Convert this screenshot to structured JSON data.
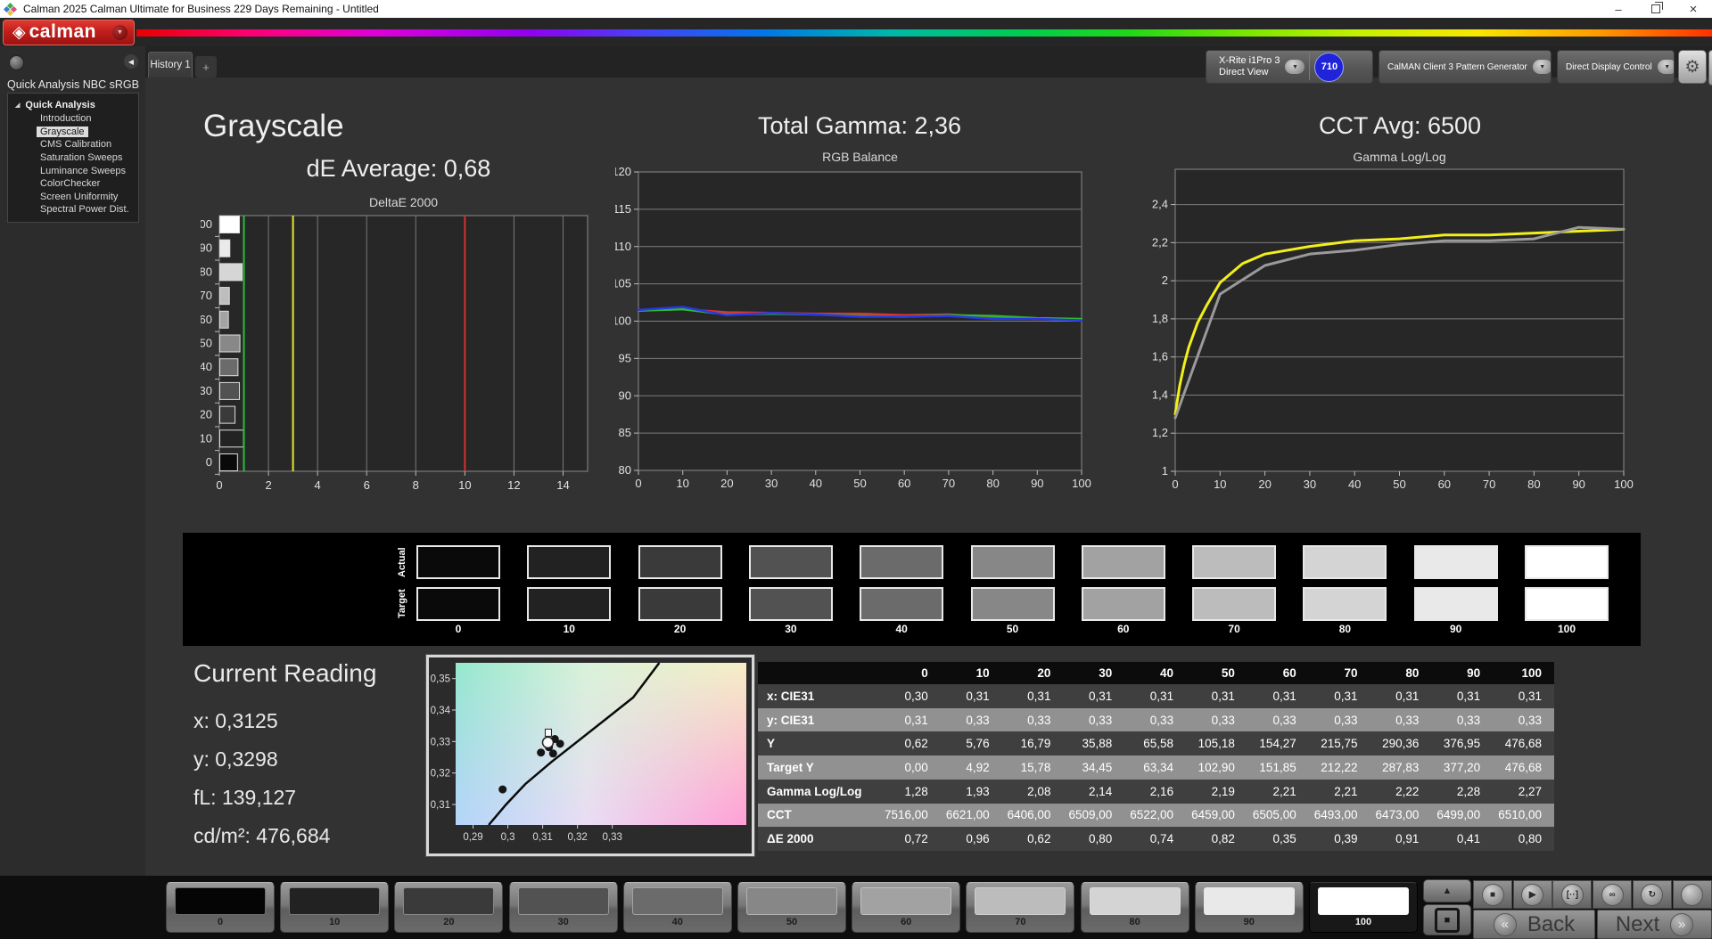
{
  "window": {
    "title": "Calman 2025 Calman Ultimate for Business 229 Days Remaining  - Untitled",
    "minimize_glyph": "–",
    "close_glyph": "×"
  },
  "brand": {
    "logo_icon": "◈",
    "logo_text": "calman",
    "dropdown_icon": "▼"
  },
  "toolbar": {
    "tab_label": "History 1",
    "add_tab_label": "+",
    "collapse_icon": "◀",
    "gear_icon": "⚙"
  },
  "meters": {
    "meter": {
      "line1": "X-Rite i1Pro 3",
      "line2": "Direct View",
      "accent": "#38d53a",
      "badge": "710",
      "badge_bg": "#1f24d8",
      "arrow": "▼"
    },
    "pattern_generator": {
      "line1": "CalMAN Client 3 Pattern Generator",
      "accent": "#38d53a",
      "arrow": "▼"
    },
    "display_control": {
      "line1": "Direct Display Control",
      "accent": "#e3d31f",
      "arrow": "▼"
    }
  },
  "sidebar": {
    "header": "Quick Analysis NBC sRGB",
    "root": "Quick Analysis",
    "expander": "◢",
    "items": [
      "Introduction",
      "Grayscale",
      "CMS Calibration",
      "Saturation Sweeps",
      "Luminance Sweeps",
      "ColorChecker",
      "Screen Uniformity",
      "Spectral Power Dist."
    ],
    "selected": "Grayscale"
  },
  "panels": {
    "grayscale_title": "Grayscale",
    "de_average": "dE Average: 0,68",
    "total_gamma": "Total Gamma: 2,36",
    "cct_avg": "CCT Avg: 6500"
  },
  "current_reading": {
    "title": "Current Reading",
    "x": "x: 0,3125",
    "y": "y: 0,3298",
    "fl": "fL: 139,127",
    "cdm2": "cd/m²: 476,684"
  },
  "chart_data": [
    {
      "id": "deltae",
      "type": "bar",
      "orientation": "horizontal",
      "title": "DeltaE 2000",
      "categories": [
        "0",
        "10",
        "20",
        "30",
        "40",
        "50",
        "60",
        "70",
        "80",
        "90",
        "100"
      ],
      "values": [
        0.72,
        0.96,
        0.62,
        0.8,
        0.74,
        0.82,
        0.35,
        0.39,
        0.91,
        0.41,
        0.8
      ],
      "bar_colors": [
        "#0a0a0a",
        "#232323",
        "#3a3a3a",
        "#525252",
        "#6b6b6b",
        "#888888",
        "#a3a3a3",
        "#bdbdbd",
        "#d6d6d6",
        "#eaeaea",
        "#ffffff"
      ],
      "xlim": [
        0,
        15
      ],
      "x_ticks": [
        0,
        2,
        4,
        6,
        8,
        10,
        12,
        14
      ],
      "reference_lines": [
        {
          "value": 1,
          "color": "#2dbb3a"
        },
        {
          "value": 3,
          "color": "#e6e332"
        },
        {
          "value": 10,
          "color": "#d03232"
        }
      ],
      "grid": true,
      "legend": "none"
    },
    {
      "id": "rgb_balance",
      "type": "line",
      "title": "RGB Balance",
      "x": [
        0,
        10,
        20,
        30,
        40,
        50,
        60,
        70,
        80,
        90,
        100
      ],
      "x_ticks": [
        0,
        10,
        20,
        30,
        40,
        50,
        60,
        70,
        80,
        90,
        100
      ],
      "ylim": [
        80,
        120
      ],
      "y_ticks": [
        {
          "v": 80,
          "label": "80"
        },
        {
          "v": 85,
          "label": "85"
        },
        {
          "v": 90,
          "label": "90"
        },
        {
          "v": 95,
          "label": "95"
        },
        {
          "v": 100,
          "label": "100"
        },
        {
          "v": 105,
          "label": "105"
        },
        {
          "v": 110,
          "label": "110"
        },
        {
          "v": 115,
          "label": "115"
        },
        {
          "v": 120,
          "label": "120"
        }
      ],
      "series": [
        {
          "name": "Red",
          "color": "#e03030",
          "values": [
            101.5,
            101.6,
            101.2,
            101.1,
            101.0,
            101.0,
            100.8,
            100.9,
            100.5,
            100.3,
            100.2
          ]
        },
        {
          "name": "Green",
          "color": "#2fb82f",
          "values": [
            101.4,
            101.6,
            100.9,
            101.0,
            100.9,
            100.7,
            100.6,
            100.8,
            100.7,
            100.4,
            100.3
          ]
        },
        {
          "name": "Blue",
          "color": "#2838e8",
          "values": [
            101.5,
            101.9,
            100.8,
            101.1,
            100.9,
            100.6,
            100.6,
            100.7,
            100.3,
            100.3,
            100.1
          ]
        }
      ],
      "grid": true,
      "legend": "none"
    },
    {
      "id": "gamma_loglog",
      "type": "line",
      "title": "Gamma Log/Log",
      "x_ticks": [
        0,
        10,
        20,
        30,
        40,
        50,
        60,
        70,
        80,
        90,
        100
      ],
      "ylim": [
        1,
        2.585
      ],
      "y_ticks": [
        {
          "v": 1,
          "label": "1"
        },
        {
          "v": 1.2,
          "label": "1,2"
        },
        {
          "v": 1.4,
          "label": "1,4"
        },
        {
          "v": 1.6,
          "label": "1,6"
        },
        {
          "v": 1.8,
          "label": "1,8"
        },
        {
          "v": 2,
          "label": "2"
        },
        {
          "v": 2.2,
          "label": "2,2"
        },
        {
          "v": 2.4,
          "label": "2,4"
        }
      ],
      "series": [
        {
          "name": "Target",
          "color": "#f2ef1a",
          "x": [
            0,
            1,
            2,
            3,
            5,
            7,
            10,
            15,
            20,
            30,
            40,
            50,
            60,
            70,
            80,
            90,
            100
          ],
          "values": [
            1.3,
            1.45,
            1.56,
            1.65,
            1.78,
            1.87,
            1.99,
            2.09,
            2.14,
            2.18,
            2.21,
            2.22,
            2.24,
            2.24,
            2.25,
            2.26,
            2.27
          ]
        },
        {
          "name": "Measured",
          "color": "#9a9a9a",
          "x": [
            0,
            10,
            20,
            30,
            40,
            50,
            60,
            70,
            80,
            90,
            100
          ],
          "values": [
            1.28,
            1.93,
            2.08,
            2.14,
            2.16,
            2.19,
            2.21,
            2.21,
            2.22,
            2.28,
            2.27
          ]
        }
      ],
      "grid": true,
      "legend": "none"
    },
    {
      "id": "cie_chromaticity",
      "type": "scatter",
      "title": "",
      "xlim": [
        0.285,
        0.3685
      ],
      "ylim": [
        0.3035,
        0.355
      ],
      "x_ticks": [
        {
          "v": 0.29,
          "label": "0,29"
        },
        {
          "v": 0.3,
          "label": "0,3"
        },
        {
          "v": 0.31,
          "label": "0,31"
        },
        {
          "v": 0.32,
          "label": "0,32"
        },
        {
          "v": 0.33,
          "label": "0,33"
        }
      ],
      "y_ticks": [
        {
          "v": 0.31,
          "label": "0,31"
        },
        {
          "v": 0.32,
          "label": "0,32"
        },
        {
          "v": 0.33,
          "label": "0,33"
        },
        {
          "v": 0.34,
          "label": "0,34"
        },
        {
          "v": 0.35,
          "label": "0,35"
        }
      ],
      "locus": [
        [
          0.2945,
          0.3035
        ],
        [
          0.2995,
          0.31
        ],
        [
          0.305,
          0.3165
        ],
        [
          0.3125,
          0.3235
        ],
        [
          0.32,
          0.33
        ],
        [
          0.328,
          0.337
        ],
        [
          0.336,
          0.344
        ],
        [
          0.3435,
          0.355
        ]
      ],
      "points": [
        [
          0.2985,
          0.3148
        ],
        [
          0.3095,
          0.3265
        ],
        [
          0.3135,
          0.3308
        ],
        [
          0.315,
          0.3293
        ],
        [
          0.3118,
          0.3282
        ],
        [
          0.313,
          0.3262
        ]
      ],
      "marker": [
        0.3115,
        0.3297
      ]
    }
  ],
  "swatch_strip": {
    "row_labels": [
      "Actual",
      "Target"
    ],
    "columns": [
      "0",
      "10",
      "20",
      "30",
      "40",
      "50",
      "60",
      "70",
      "80",
      "90",
      "100"
    ],
    "colors": [
      "#0a0a0a",
      "#222222",
      "#3a3a3a",
      "#525252",
      "#6b6b6b",
      "#878787",
      "#a2a2a2",
      "#bcbcbc",
      "#d4d4d4",
      "#e9e9e9",
      "#ffffff"
    ]
  },
  "table": {
    "headers": [
      "0",
      "10",
      "20",
      "30",
      "40",
      "50",
      "60",
      "70",
      "80",
      "90",
      "100"
    ],
    "rows": [
      {
        "label": "x: CIE31",
        "values": [
          "0,30",
          "0,31",
          "0,31",
          "0,31",
          "0,31",
          "0,31",
          "0,31",
          "0,31",
          "0,31",
          "0,31",
          "0,31"
        ]
      },
      {
        "label": "y: CIE31",
        "values": [
          "0,31",
          "0,33",
          "0,33",
          "0,33",
          "0,33",
          "0,33",
          "0,33",
          "0,33",
          "0,33",
          "0,33",
          "0,33"
        ]
      },
      {
        "label": "Y",
        "values": [
          "0,62",
          "5,76",
          "16,79",
          "35,88",
          "65,58",
          "105,18",
          "154,27",
          "215,75",
          "290,36",
          "376,95",
          "476,68"
        ]
      },
      {
        "label": "Target Y",
        "values": [
          "0,00",
          "4,92",
          "15,78",
          "34,45",
          "63,34",
          "102,90",
          "151,85",
          "212,22",
          "287,83",
          "377,20",
          "476,68"
        ]
      },
      {
        "label": "Gamma Log/Log",
        "values": [
          "1,28",
          "1,93",
          "2,08",
          "2,14",
          "2,16",
          "2,19",
          "2,21",
          "2,21",
          "2,22",
          "2,28",
          "2,27"
        ]
      },
      {
        "label": "CCT",
        "values": [
          "7516,00",
          "6621,00",
          "6406,00",
          "6509,00",
          "6522,00",
          "6459,00",
          "6505,00",
          "6493,00",
          "6473,00",
          "6499,00",
          "6510,00"
        ]
      },
      {
        "label": "ΔE 2000",
        "values": [
          "0,72",
          "0,96",
          "0,62",
          "0,80",
          "0,74",
          "0,82",
          "0,35",
          "0,39",
          "0,91",
          "0,41",
          "0,80"
        ]
      }
    ]
  },
  "bottom_bar": {
    "patches": [
      {
        "label": "0",
        "color": "#050505"
      },
      {
        "label": "10",
        "color": "#222222"
      },
      {
        "label": "20",
        "color": "#3a3a3a"
      },
      {
        "label": "30",
        "color": "#525252"
      },
      {
        "label": "40",
        "color": "#6b6b6b"
      },
      {
        "label": "50",
        "color": "#878787"
      },
      {
        "label": "60",
        "color": "#a2a2a2"
      },
      {
        "label": "70",
        "color": "#bcbcbc"
      },
      {
        "label": "80",
        "color": "#d4d4d4"
      },
      {
        "label": "90",
        "color": "#e9e9e9"
      },
      {
        "label": "100",
        "color": "#ffffff"
      }
    ],
    "selected": "100",
    "pattern_up_glyph": "▲",
    "pattern_stop_glyph": "■",
    "transport": [
      {
        "name": "stop",
        "glyph": "■"
      },
      {
        "name": "play",
        "glyph": "▶"
      },
      {
        "name": "measure-single",
        "glyph": "[··]"
      },
      {
        "name": "measure-continuous",
        "glyph": "∞"
      },
      {
        "name": "loop",
        "glyph": "↻"
      },
      {
        "name": "record",
        "glyph": ""
      }
    ],
    "back": {
      "icon": "«",
      "label": "Back"
    },
    "next": {
      "icon": "»",
      "label": "Next"
    }
  }
}
